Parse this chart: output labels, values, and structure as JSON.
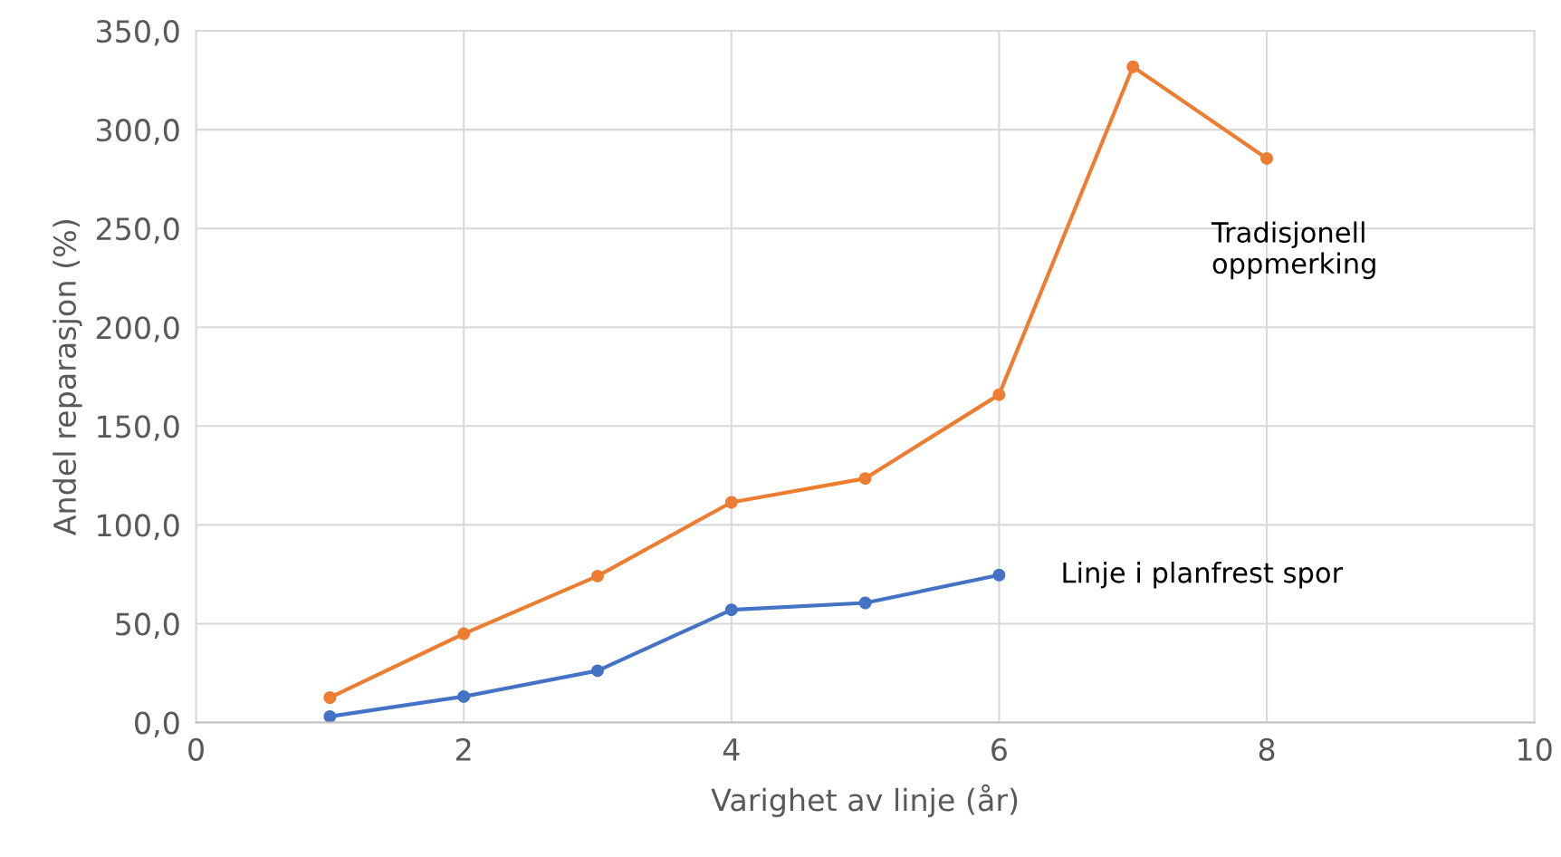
{
  "chart_data": {
    "type": "line",
    "xlabel": "Varighet av linje (år)",
    "ylabel": "Andel reparasjon (%)",
    "x": [
      1,
      2,
      3,
      4,
      5,
      6,
      7,
      8
    ],
    "series": [
      {
        "name": "Tradisjonell oppmerking",
        "color": "#ed7d31",
        "values": [
          12.6,
          44.9,
          74.1,
          111.4,
          123.5,
          165.9,
          331.8,
          285.4
        ]
      },
      {
        "name": "Linje i planfrest spor",
        "color": "#4472c4",
        "values": [
          3.0,
          13.1,
          26.2,
          57.0,
          60.5,
          74.6,
          null,
          null
        ]
      }
    ],
    "xlim": [
      0,
      10
    ],
    "xticks": [
      0,
      2,
      4,
      6,
      8,
      10
    ],
    "ylim": [
      0,
      350
    ],
    "yticks": [
      {
        "value": 0,
        "label": "0,0"
      },
      {
        "value": 50,
        "label": "50,0"
      },
      {
        "value": 100,
        "label": "100,0"
      },
      {
        "value": 150,
        "label": "150,0"
      },
      {
        "value": 200,
        "label": "200,0"
      },
      {
        "value": 250,
        "label": "250,0"
      },
      {
        "value": 300,
        "label": "300,0"
      },
      {
        "value": 350,
        "label": "350,0"
      }
    ],
    "grid": true,
    "legend": false,
    "marker": "circle",
    "line_style": "solid"
  }
}
